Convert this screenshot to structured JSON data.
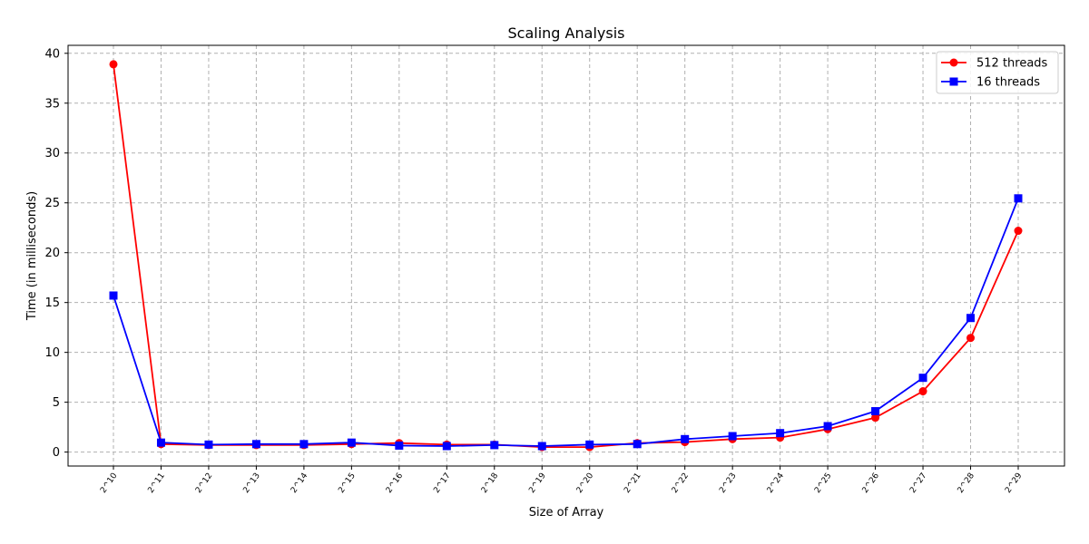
{
  "chart_data": {
    "type": "line",
    "title": "Scaling Analysis",
    "xlabel": "Size of Array",
    "ylabel": "Time (in milliseconds)",
    "categories": [
      "2^10",
      "2^11",
      "2^12",
      "2^13",
      "2^14",
      "2^15",
      "2^16",
      "2^17",
      "2^18",
      "2^19",
      "2^20",
      "2^21",
      "2^22",
      "2^23",
      "2^24",
      "2^25",
      "2^26",
      "2^27",
      "2^28",
      "2^29"
    ],
    "ylim": [
      -1.4,
      40.8
    ],
    "yticks": [
      0,
      5,
      10,
      15,
      20,
      25,
      30,
      35,
      40
    ],
    "grid": true,
    "legend_position": "top-right",
    "series": [
      {
        "name": "512 threads",
        "color": "#ff0000",
        "marker": "circle",
        "values": [
          38.9,
          0.8,
          0.7,
          0.7,
          0.7,
          0.8,
          0.9,
          0.75,
          0.75,
          0.5,
          0.5,
          0.9,
          1.0,
          1.3,
          1.45,
          2.3,
          3.45,
          6.1,
          11.45,
          22.2
        ]
      },
      {
        "name": "16 threads",
        "color": "#0000ff",
        "marker": "square",
        "values": [
          15.7,
          0.95,
          0.75,
          0.8,
          0.8,
          0.95,
          0.65,
          0.6,
          0.7,
          0.6,
          0.75,
          0.8,
          1.3,
          1.6,
          1.9,
          2.6,
          4.1,
          7.45,
          13.45,
          25.45
        ]
      }
    ]
  }
}
